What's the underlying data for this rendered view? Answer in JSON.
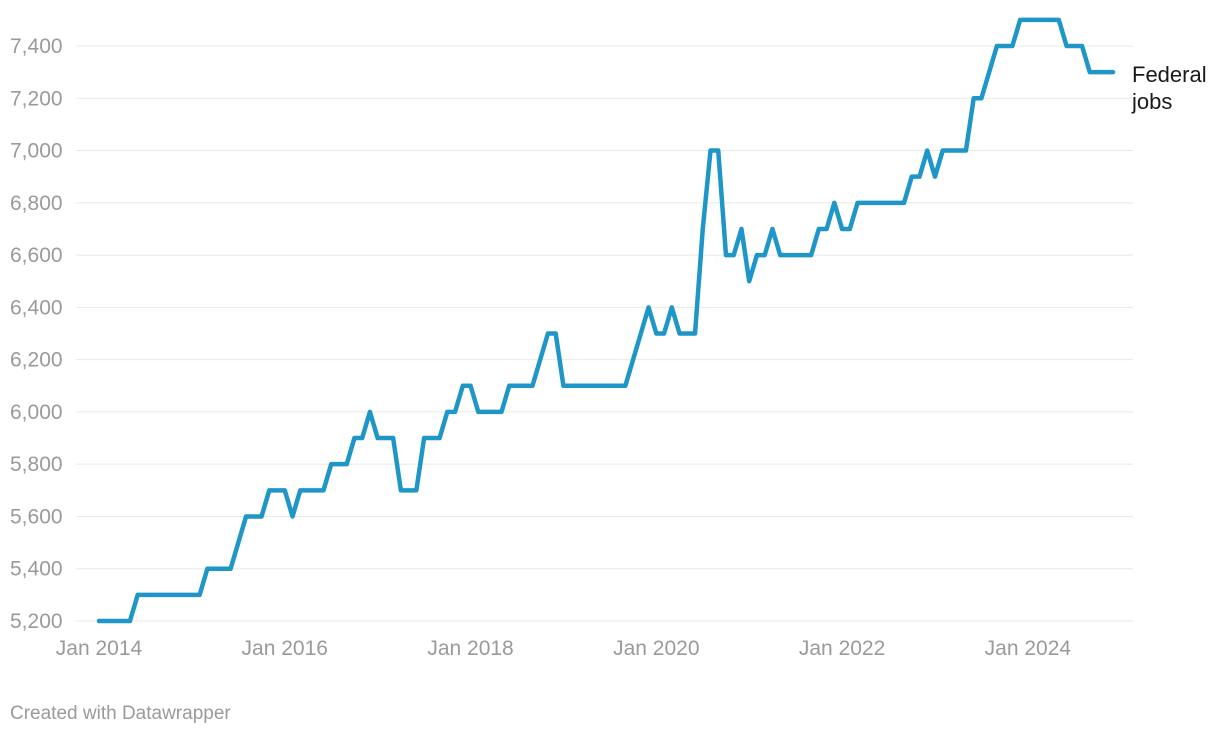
{
  "chart_data": {
    "type": "line",
    "title": "",
    "frequency": "monthly",
    "x_start": "Jan 2014",
    "x_end": "Dec 2024",
    "series": [
      {
        "name": "Federal jobs",
        "color": "#1e96c8",
        "values": [
          5200,
          5200,
          5200,
          5200,
          5200,
          5300,
          5300,
          5300,
          5300,
          5300,
          5300,
          5300,
          5300,
          5300,
          5400,
          5400,
          5400,
          5400,
          5500,
          5600,
          5600,
          5600,
          5700,
          5700,
          5700,
          5600,
          5700,
          5700,
          5700,
          5700,
          5800,
          5800,
          5800,
          5900,
          5900,
          6000,
          5900,
          5900,
          5900,
          5700,
          5700,
          5700,
          5900,
          5900,
          5900,
          6000,
          6000,
          6100,
          6100,
          6000,
          6000,
          6000,
          6000,
          6100,
          6100,
          6100,
          6100,
          6200,
          6300,
          6300,
          6100,
          6100,
          6100,
          6100,
          6100,
          6100,
          6100,
          6100,
          6100,
          6200,
          6300,
          6400,
          6300,
          6300,
          6400,
          6300,
          6300,
          6300,
          6700,
          7000,
          7000,
          6600,
          6600,
          6700,
          6500,
          6600,
          6600,
          6700,
          6600,
          6600,
          6600,
          6600,
          6600,
          6700,
          6700,
          6800,
          6700,
          6700,
          6800,
          6800,
          6800,
          6800,
          6800,
          6800,
          6800,
          6900,
          6900,
          7000,
          6900,
          7000,
          7000,
          7000,
          7000,
          7200,
          7200,
          7300,
          7400,
          7400,
          7400,
          7500,
          7500,
          7500,
          7500,
          7500,
          7500,
          7400,
          7400,
          7400,
          7300,
          7300,
          7300,
          7300
        ]
      }
    ],
    "ylim": [
      5200,
      7500
    ],
    "y_ticks": [
      {
        "value": 5200,
        "label": "5,200"
      },
      {
        "value": 5400,
        "label": "5,400"
      },
      {
        "value": 5600,
        "label": "5,600"
      },
      {
        "value": 5800,
        "label": "5,800"
      },
      {
        "value": 6000,
        "label": "6,000"
      },
      {
        "value": 6200,
        "label": "6,200"
      },
      {
        "value": 6400,
        "label": "6,400"
      },
      {
        "value": 6600,
        "label": "6,600"
      },
      {
        "value": 6800,
        "label": "6,800"
      },
      {
        "value": 7000,
        "label": "7,000"
      },
      {
        "value": 7200,
        "label": "7,200"
      },
      {
        "value": 7400,
        "label": "7,400"
      }
    ],
    "x_ticks": [
      {
        "label": "Jan 2014",
        "month_index": 0
      },
      {
        "label": "Jan 2016",
        "month_index": 24
      },
      {
        "label": "Jan 2018",
        "month_index": 48
      },
      {
        "label": "Jan 2020",
        "month_index": 72
      },
      {
        "label": "Jan 2022",
        "month_index": 96
      },
      {
        "label": "Jan 2024",
        "month_index": 120
      }
    ],
    "grid": true,
    "legend_position": "right-of-line-end"
  },
  "legend": {
    "lines": [
      "Federal",
      "jobs"
    ]
  },
  "footer": {
    "credit": "Created with Datawrapper"
  },
  "colors": {
    "line": "#1e96c8",
    "grid": "#e8e8e8",
    "tick_text": "#9a9a9a",
    "legend_text": "#1a1a1a",
    "background": "#ffffff"
  }
}
